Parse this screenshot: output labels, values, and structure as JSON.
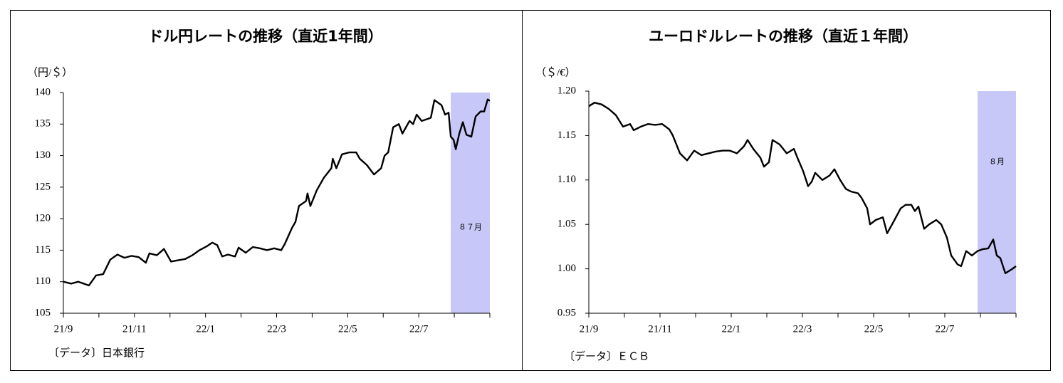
{
  "chart_data": [
    {
      "type": "line",
      "title": "ドル円レートの推移（直近1年間）",
      "unit_label": "（円/＄）",
      "source": "〔データ〕日本銀行",
      "color": "#000000",
      "xlim": [
        0,
        12
      ],
      "ylim": [
        105,
        140
      ],
      "xticks": [
        {
          "value": 0,
          "label": "21/9"
        },
        {
          "value": 2,
          "label": "21/11"
        },
        {
          "value": 4,
          "label": "22/1"
        },
        {
          "value": 6,
          "label": "22/3"
        },
        {
          "value": 8,
          "label": "22/5"
        },
        {
          "value": 10,
          "label": "22/7"
        },
        12
      ],
      "xminorticks": [
        1,
        3,
        5,
        7,
        9,
        11
      ],
      "yticks": [
        105,
        110,
        115,
        120,
        125,
        130,
        135,
        140
      ],
      "highlight": {
        "xlim": [
          10.9,
          12
        ],
        "label": "８７月",
        "color": "#c8c8f8"
      },
      "x": [
        0,
        0.22,
        0.42,
        0.62,
        0.72,
        0.92,
        1.12,
        1.32,
        1.52,
        1.72,
        1.92,
        2.12,
        2.32,
        2.42,
        2.63,
        2.83,
        3.03,
        3.23,
        3.43,
        3.63,
        3.83,
        4.03,
        4.19,
        4.33,
        4.47,
        4.63,
        4.83,
        4.93,
        5.13,
        5.33,
        5.53,
        5.73,
        5.93,
        6.13,
        6.23,
        6.43,
        6.53,
        6.63,
        6.83,
        6.87,
        6.95,
        7.13,
        7.33,
        7.54,
        7.58,
        7.68,
        7.84,
        8.04,
        8.24,
        8.34,
        8.54,
        8.74,
        8.94,
        9.04,
        9.14,
        9.28,
        9.44,
        9.54,
        9.74,
        9.84,
        9.94,
        10.08,
        10.24,
        10.34,
        10.44,
        10.64,
        10.74,
        10.84,
        10.9,
        10.98,
        11.04,
        11.14,
        11.24,
        11.34,
        11.48,
        11.6,
        11.74,
        11.84,
        11.94,
        12
      ],
      "values": [
        110.0,
        109.7,
        110.0,
        109.6,
        109.4,
        111.0,
        111.2,
        113.5,
        114.3,
        113.8,
        114.1,
        113.9,
        113.0,
        114.5,
        114.2,
        115.2,
        113.2,
        113.4,
        113.6,
        114.2,
        115.0,
        115.6,
        116.2,
        115.8,
        114.0,
        114.3,
        114.0,
        115.4,
        114.6,
        115.5,
        115.3,
        115.0,
        115.3,
        115.0,
        116.0,
        118.5,
        119.5,
        122.0,
        122.8,
        124.0,
        122.0,
        124.5,
        126.5,
        128.0,
        129.5,
        128.0,
        130.2,
        130.5,
        130.5,
        129.5,
        128.5,
        127.0,
        128.0,
        130.0,
        130.5,
        134.5,
        135.0,
        133.5,
        135.5,
        135.0,
        136.5,
        135.5,
        135.8,
        136.0,
        138.8,
        138.0,
        136.5,
        136.8,
        133.0,
        132.5,
        131.0,
        133.5,
        135.3,
        133.3,
        133.0,
        136.2,
        137.0,
        137.0,
        138.9,
        138.7
      ]
    },
    {
      "type": "line",
      "title": "ユーロドルレートの推移（直近１年間）",
      "unit_label": "（＄/€）",
      "source": "〔データ〕ＥＣＢ",
      "color": "#000000",
      "xlim": [
        0,
        12
      ],
      "ylim": [
        0.95,
        1.2
      ],
      "xticks": [
        {
          "value": 0,
          "label": "21/9"
        },
        {
          "value": 2,
          "label": "21/11"
        },
        {
          "value": 4,
          "label": "22/1"
        },
        {
          "value": 6,
          "label": "22/3"
        },
        {
          "value": 8,
          "label": "22/5"
        },
        {
          "value": 10,
          "label": "22/7"
        },
        12
      ],
      "xminorticks": [
        1,
        3,
        5,
        7,
        9,
        11
      ],
      "yticks": [
        0.95,
        {
          "value": 1.0,
          "label": "1.00"
        },
        1.05,
        {
          "value": 1.1,
          "label": "1.10"
        },
        1.15,
        {
          "value": 1.2,
          "label": "1.20"
        }
      ],
      "highlight": {
        "xlim": [
          10.92,
          12
        ],
        "label": "８月",
        "color": "#c8c8f8"
      },
      "x": [
        0,
        0.16,
        0.36,
        0.56,
        0.76,
        0.96,
        1.16,
        1.26,
        1.46,
        1.66,
        1.86,
        2.06,
        2.26,
        2.36,
        2.56,
        2.76,
        2.96,
        3.16,
        3.36,
        3.56,
        3.76,
        3.96,
        4.16,
        4.36,
        4.46,
        4.62,
        4.82,
        4.92,
        5.06,
        5.16,
        5.36,
        5.56,
        5.76,
        5.86,
        6.02,
        6.16,
        6.26,
        6.36,
        6.56,
        6.76,
        6.9,
        7.06,
        7.22,
        7.36,
        7.56,
        7.66,
        7.82,
        7.9,
        8.06,
        8.26,
        8.38,
        8.56,
        8.76,
        8.9,
        9.06,
        9.16,
        9.26,
        9.42,
        9.56,
        9.76,
        9.9,
        10.06,
        10.18,
        10.36,
        10.46,
        10.6,
        10.76,
        10.92,
        11.06,
        11.22,
        11.36,
        11.46,
        11.56,
        11.7,
        11.82,
        11.9,
        12
      ],
      "values": [
        1.183,
        1.187,
        1.185,
        1.18,
        1.173,
        1.16,
        1.163,
        1.156,
        1.16,
        1.163,
        1.162,
        1.163,
        1.157,
        1.15,
        1.13,
        1.122,
        1.133,
        1.128,
        1.13,
        1.132,
        1.133,
        1.133,
        1.13,
        1.138,
        1.145,
        1.135,
        1.125,
        1.115,
        1.12,
        1.145,
        1.14,
        1.13,
        1.135,
        1.125,
        1.11,
        1.093,
        1.098,
        1.108,
        1.1,
        1.105,
        1.112,
        1.1,
        1.09,
        1.087,
        1.085,
        1.08,
        1.068,
        1.05,
        1.055,
        1.058,
        1.04,
        1.053,
        1.068,
        1.072,
        1.072,
        1.065,
        1.07,
        1.045,
        1.05,
        1.055,
        1.05,
        1.035,
        1.015,
        1.005,
        1.003,
        1.02,
        1.015,
        1.02,
        1.022,
        1.023,
        1.033,
        1.015,
        1.012,
        0.995,
        0.998,
        1.0,
        1.003
      ]
    }
  ]
}
